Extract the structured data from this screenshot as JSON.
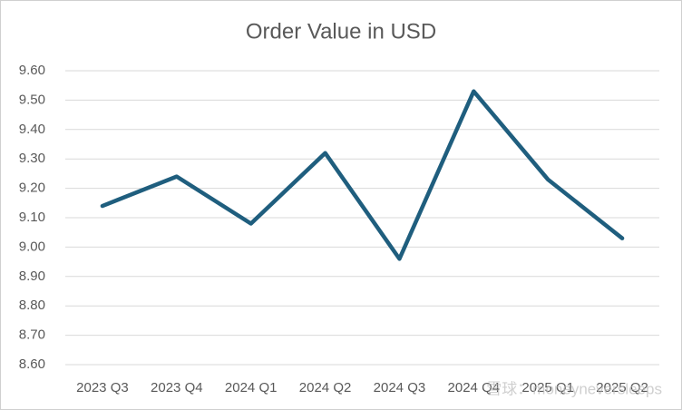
{
  "chart_data": {
    "type": "line",
    "title": "Order Value in USD",
    "categories": [
      "2023 Q3",
      "2023 Q4",
      "2024 Q1",
      "2024 Q2",
      "2024 Q3",
      "2024 Q4",
      "2025 Q1",
      "2025 Q2"
    ],
    "values": [
      9.14,
      9.24,
      9.08,
      9.32,
      8.96,
      9.53,
      9.23,
      9.03
    ],
    "color": "#1f5e7e",
    "ylim": [
      8.6,
      9.6
    ],
    "yticks": [
      {
        "value": 8.6,
        "label": "8.60"
      },
      {
        "value": 8.7,
        "label": "8.70"
      },
      {
        "value": 8.8,
        "label": "8.80"
      },
      {
        "value": 8.9,
        "label": "8.90"
      },
      {
        "value": 9,
        "label": "9.00"
      },
      {
        "value": 9.1,
        "label": "9.10"
      },
      {
        "value": 9.2,
        "label": "9.20"
      },
      {
        "value": 9.3,
        "label": "9.30"
      },
      {
        "value": 9.4,
        "label": "9.40"
      },
      {
        "value": 9.5,
        "label": "9.50"
      },
      {
        "value": 9.6,
        "label": "9.60"
      }
    ],
    "grid": true
  },
  "watermark": "雪球：moneyneversleeps"
}
